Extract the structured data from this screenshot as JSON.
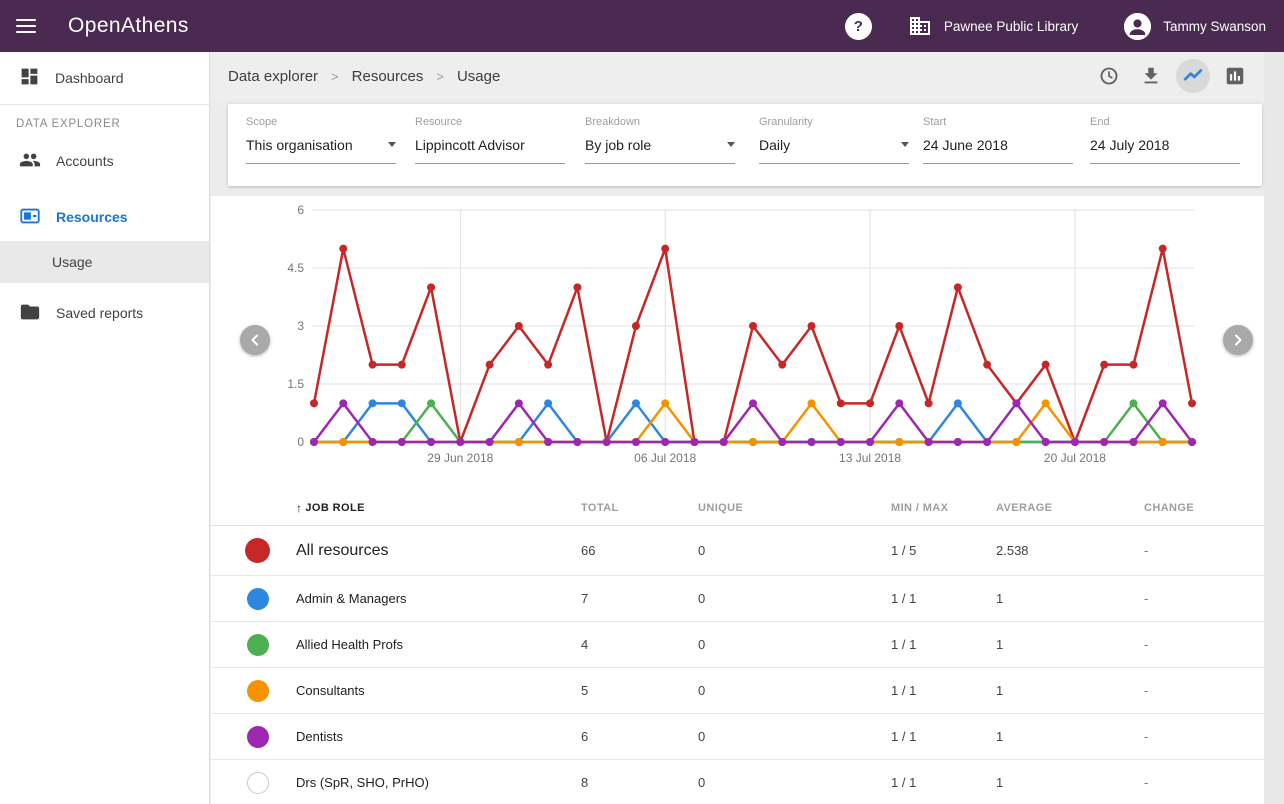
{
  "topbar": {
    "brand": "OpenAthens",
    "help_glyph": "?",
    "org_name": "Pawnee Public Library",
    "user_name": "Tammy Swanson"
  },
  "sidebar": {
    "dashboard": "Dashboard",
    "section_label": "DATA EXPLORER",
    "accounts": "Accounts",
    "resources": "Resources",
    "usage": "Usage",
    "saved_reports": "Saved reports"
  },
  "breadcrumb": {
    "items": [
      "Data explorer",
      "Resources",
      "Usage"
    ],
    "separator": ">"
  },
  "filters": [
    {
      "label": "Scope",
      "value": "This organisation",
      "caret": true
    },
    {
      "label": "Resource",
      "value": "Lippincott Advisor",
      "caret": false
    },
    {
      "label": "Breakdown",
      "value": "By job role",
      "caret": true
    },
    {
      "label": "Granularity",
      "value": "Daily",
      "caret": true
    },
    {
      "label": "Start",
      "value": "24 June 2018",
      "caret": false
    },
    {
      "label": "End",
      "value": "24 July 2018",
      "caret": false
    }
  ],
  "chart_data": {
    "type": "line",
    "grid": true,
    "ylim": [
      0,
      6
    ],
    "y_ticks": [
      0,
      1.5,
      3,
      4.5,
      6
    ],
    "x": [
      "24 Jun",
      "25 Jun",
      "26 Jun",
      "27 Jun",
      "28 Jun",
      "29 Jun",
      "30 Jun",
      "01 Jul",
      "02 Jul",
      "03 Jul",
      "04 Jul",
      "05 Jul",
      "06 Jul",
      "07 Jul",
      "08 Jul",
      "09 Jul",
      "10 Jul",
      "11 Jul",
      "12 Jul",
      "13 Jul",
      "14 Jul",
      "15 Jul",
      "16 Jul",
      "17 Jul",
      "18 Jul",
      "19 Jul",
      "20 Jul",
      "21 Jul",
      "22 Jul",
      "23 Jul",
      "24 Jul"
    ],
    "x_ticks": [
      {
        "index": 5,
        "label": "29 Jun 2018"
      },
      {
        "index": 12,
        "label": "06 Jul 2018"
      },
      {
        "index": 19,
        "label": "13 Jul 2018"
      },
      {
        "index": 26,
        "label": "20 Jul 2018"
      }
    ],
    "series": [
      {
        "name": "All resources",
        "color": "#c62828",
        "values": [
          1,
          5,
          2,
          2,
          4,
          0,
          2,
          3,
          2,
          4,
          0,
          3,
          5,
          0,
          0,
          3,
          2,
          3,
          1,
          1,
          3,
          1,
          4,
          2,
          1,
          2,
          0,
          2,
          2,
          5,
          1
        ]
      },
      {
        "name": "Admin & Managers",
        "color": "#2d87e0",
        "values": [
          0,
          0,
          1,
          1,
          0,
          0,
          0,
          0,
          1,
          0,
          0,
          1,
          0,
          0,
          0,
          0,
          0,
          0,
          0,
          0,
          0,
          0,
          1,
          0,
          0,
          0,
          0,
          0,
          0,
          0,
          0
        ]
      },
      {
        "name": "Allied Health Profs",
        "color": "#4caf50",
        "values": [
          0,
          0,
          0,
          0,
          1,
          0,
          0,
          0,
          0,
          0,
          0,
          0,
          0,
          0,
          0,
          0,
          0,
          0,
          0,
          0,
          0,
          0,
          0,
          0,
          0,
          0,
          0,
          0,
          1,
          0,
          0
        ]
      },
      {
        "name": "Consultants",
        "color": "#f49200",
        "values": [
          0,
          0,
          0,
          0,
          0,
          0,
          0,
          0,
          0,
          0,
          0,
          0,
          1,
          0,
          0,
          0,
          0,
          1,
          0,
          0,
          0,
          0,
          0,
          0,
          0,
          1,
          0,
          0,
          0,
          0,
          0
        ]
      },
      {
        "name": "Dentists",
        "color": "#9c27b0",
        "values": [
          0,
          1,
          0,
          0,
          0,
          0,
          0,
          1,
          0,
          0,
          0,
          0,
          0,
          0,
          0,
          1,
          0,
          0,
          0,
          0,
          1,
          0,
          0,
          0,
          1,
          0,
          0,
          0,
          0,
          1,
          0
        ]
      },
      {
        "name": "Drs (SpR, SHO, PrHO)",
        "color": "#ffffff",
        "in_chart": false,
        "values": [
          0,
          0,
          0,
          0,
          0,
          0,
          0,
          0,
          0,
          0,
          0,
          0,
          0,
          0,
          0,
          0,
          0,
          0,
          0,
          0,
          0,
          0,
          0,
          0,
          0,
          0,
          0,
          0,
          0,
          0,
          0
        ]
      }
    ]
  },
  "table": {
    "sort_icon": "↑",
    "columns": [
      "JOB ROLE",
      "TOTAL",
      "UNIQUE",
      "MIN / MAX",
      "AVERAGE",
      "CHANGE"
    ],
    "rows": [
      {
        "label": "All resources",
        "color": "#c62828",
        "total": "66",
        "unique": "0",
        "min_max": "1 / 5",
        "average": "2.538",
        "change": "-"
      },
      {
        "label": "Admin & Managers",
        "color": "#2d87e0",
        "total": "7",
        "unique": "0",
        "min_max": "1 / 1",
        "average": "1",
        "change": "-"
      },
      {
        "label": "Allied Health Profs",
        "color": "#4caf50",
        "total": "4",
        "unique": "0",
        "min_max": "1 / 1",
        "average": "1",
        "change": "-"
      },
      {
        "label": "Consultants",
        "color": "#f49200",
        "total": "5",
        "unique": "0",
        "min_max": "1 / 1",
        "average": "1",
        "change": "-"
      },
      {
        "label": "Dentists",
        "color": "#9c27b0",
        "total": "6",
        "unique": "0",
        "min_max": "1 / 1",
        "average": "1",
        "change": "-"
      },
      {
        "label": "Drs (SpR, SHO, PrHO)",
        "color": "#ffffff",
        "total": "8",
        "unique": "0",
        "min_max": "1 / 1",
        "average": "1",
        "change": "-"
      }
    ]
  }
}
